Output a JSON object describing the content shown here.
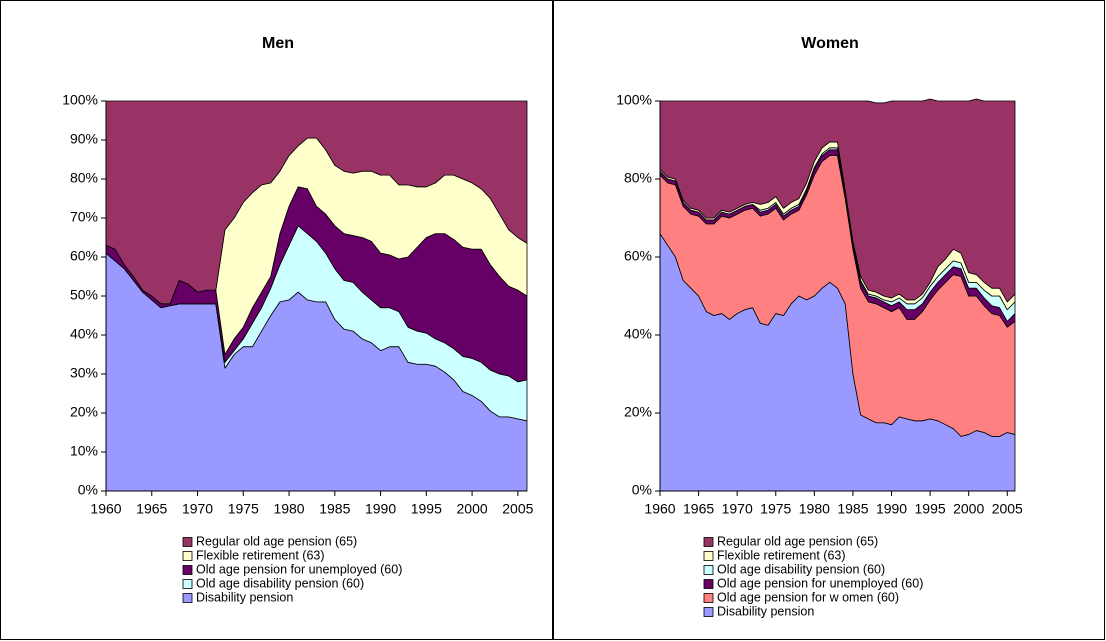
{
  "chart_data": [
    {
      "type": "stacked_area",
      "title": "Men",
      "x": [
        1960,
        1961,
        1962,
        1963,
        1964,
        1965,
        1966,
        1967,
        1968,
        1969,
        1970,
        1971,
        1972,
        1973,
        1974,
        1975,
        1976,
        1977,
        1978,
        1979,
        1980,
        1981,
        1982,
        1983,
        1984,
        1985,
        1986,
        1987,
        1988,
        1989,
        1990,
        1991,
        1992,
        1993,
        1994,
        1995,
        1996,
        1997,
        1998,
        1999,
        2000,
        2001,
        2002,
        2003,
        2004,
        2005,
        2006
      ],
      "xlim": [
        1960,
        2006
      ],
      "xticks": [
        1960,
        1965,
        1970,
        1975,
        1980,
        1985,
        1990,
        1995,
        2000,
        2005
      ],
      "ylim": [
        0,
        100
      ],
      "yticks": [
        {
          "value": 0,
          "label": "0%"
        },
        {
          "value": 10,
          "label": "10%"
        },
        {
          "value": 20,
          "label": "20%"
        },
        {
          "value": 30,
          "label": "30%"
        },
        {
          "value": 40,
          "label": "40%"
        },
        {
          "value": 50,
          "label": "50%"
        },
        {
          "value": 60,
          "label": "60%"
        },
        {
          "value": 70,
          "label": "70%"
        },
        {
          "value": 80,
          "label": "80%"
        },
        {
          "value": 90,
          "label": "90%"
        },
        {
          "value": 100,
          "label": "100%"
        }
      ],
      "series": [
        {
          "name": "Disability pension",
          "color": "#9999ff",
          "values": [
            61,
            59,
            57,
            54,
            51,
            49,
            47,
            47.5,
            48,
            48,
            48,
            48,
            48,
            31.5,
            35,
            37,
            37,
            41,
            45,
            48.5,
            49,
            51,
            49,
            48.5,
            48.5,
            44,
            41.5,
            41,
            39,
            38,
            36,
            37,
            37,
            33,
            32.5,
            32.5,
            32,
            30.5,
            28.5,
            25.5,
            24.5,
            23,
            20.5,
            19,
            19,
            18.5,
            18
          ]
        },
        {
          "name": "Old age disability pension (60)",
          "color": "#ccffff",
          "values": [
            0,
            0,
            0,
            0,
            0,
            0,
            0,
            0,
            0,
            0,
            0,
            0,
            0,
            1.5,
            1,
            2,
            6,
            6,
            7,
            9.5,
            14,
            17,
            17,
            15.5,
            12.5,
            13,
            12.5,
            12.5,
            12,
            11,
            11,
            10,
            9,
            9,
            8.5,
            8,
            7,
            7.5,
            8,
            9,
            9.5,
            10,
            10.5,
            11,
            10.5,
            9.5,
            10.5
          ]
        },
        {
          "name": "Old age pension for unemployed (60)",
          "color": "#660066",
          "values": [
            2,
            3,
            1,
            1,
            0.5,
            1,
            1,
            0.5,
            6,
            5,
            3,
            3.5,
            3.5,
            2,
            3,
            3,
            4,
            4,
            3,
            8,
            10,
            10,
            11.5,
            9,
            10,
            11,
            12,
            12,
            14,
            15,
            14,
            13.5,
            13.5,
            18,
            21.5,
            24.5,
            27,
            28,
            28,
            28,
            28,
            29,
            27,
            25,
            23,
            23.5,
            21.5
          ]
        },
        {
          "name": "Flexible retirement (63)",
          "color": "#ffffcc",
          "values": [
            0,
            0,
            0,
            0,
            0,
            0,
            0,
            0,
            0,
            0,
            0,
            0,
            0,
            32,
            31,
            32,
            29.5,
            27.5,
            24,
            16,
            13,
            10.5,
            13,
            17.5,
            16.5,
            15.5,
            16,
            16,
            17,
            18,
            20,
            20.5,
            19,
            18.5,
            15.5,
            13,
            13,
            15,
            16.5,
            17.5,
            17,
            15.5,
            17,
            16,
            14.5,
            13.5,
            13.5
          ]
        },
        {
          "name": "Regular old age pension (65)",
          "color": "#993366",
          "values": [
            37,
            38,
            42,
            45,
            48.5,
            50,
            52,
            52,
            46,
            47,
            49,
            48.5,
            48.5,
            33,
            30,
            26,
            23.5,
            21.5,
            21,
            18,
            14,
            11.5,
            9.5,
            9.5,
            12.5,
            16.5,
            18,
            18.5,
            18,
            18,
            19,
            19,
            21.5,
            21.5,
            22,
            22,
            21,
            19,
            19,
            20,
            21,
            22.5,
            25,
            29,
            33,
            35,
            36.5
          ]
        }
      ]
    },
    {
      "type": "stacked_area",
      "title": "Women",
      "x": [
        1960,
        1961,
        1962,
        1963,
        1964,
        1965,
        1966,
        1967,
        1968,
        1969,
        1970,
        1971,
        1972,
        1973,
        1974,
        1975,
        1976,
        1977,
        1978,
        1979,
        1980,
        1981,
        1982,
        1983,
        1984,
        1985,
        1986,
        1987,
        1988,
        1989,
        1990,
        1991,
        1992,
        1993,
        1994,
        1995,
        1996,
        1997,
        1998,
        1999,
        2000,
        2001,
        2002,
        2003,
        2004,
        2005,
        2006
      ],
      "xlim": [
        1960,
        2006
      ],
      "xticks": [
        1960,
        1965,
        1970,
        1975,
        1980,
        1985,
        1990,
        1995,
        2000,
        2005
      ],
      "ylim": [
        0,
        100
      ],
      "yticks": [
        {
          "value": 0,
          "label": "0%"
        },
        {
          "value": 20,
          "label": "20%"
        },
        {
          "value": 40,
          "label": "40%"
        },
        {
          "value": 60,
          "label": "60%"
        },
        {
          "value": 80,
          "label": "80%"
        },
        {
          "value": 100,
          "label": "100%"
        }
      ],
      "series": [
        {
          "name": "Disability pension",
          "color": "#9999ff",
          "values": [
            66,
            63,
            60,
            54,
            52,
            50,
            46,
            45,
            45.5,
            44,
            45.5,
            46.5,
            47,
            43,
            42.5,
            45.5,
            45,
            48,
            50,
            49,
            50,
            52,
            53.5,
            52,
            48,
            30,
            19.5,
            18.5,
            17.5,
            17.5,
            17,
            19,
            18.5,
            18,
            18,
            18.5,
            18,
            17,
            16,
            14,
            14.5,
            15.5,
            15,
            14,
            14,
            15,
            14.5
          ]
        },
        {
          "name": "Old age pension for w omen (60)",
          "color": "#ff8080",
          "values": [
            15,
            16,
            18.5,
            19,
            19,
            20.5,
            22.5,
            23.5,
            25,
            26,
            25.5,
            25.5,
            25.5,
            27.5,
            28.5,
            27,
            24.5,
            23,
            22,
            27,
            31,
            32.5,
            32.5,
            34,
            27,
            32,
            32.5,
            30,
            30.5,
            29.5,
            29,
            28,
            25.5,
            26,
            28,
            30.5,
            33.5,
            36.5,
            39.5,
            41,
            35.5,
            34.5,
            32.5,
            31.5,
            31,
            27,
            29
          ]
        },
        {
          "name": "Old age pension for unemployed (60)",
          "color": "#660066",
          "values": [
            1,
            1,
            1,
            1,
            1,
            1,
            1,
            1,
            1,
            1,
            1,
            1,
            1,
            1,
            1,
            1,
            1,
            1,
            1,
            1,
            1.5,
            1.5,
            1.5,
            1.5,
            1,
            1,
            1.5,
            1.5,
            1.5,
            1.5,
            1.5,
            1.5,
            2.5,
            2.5,
            2,
            2,
            2,
            2,
            2,
            2,
            2,
            2,
            2,
            2,
            2,
            1.5,
            2
          ]
        },
        {
          "name": "Old age disability pension (60)",
          "color": "#ccffff",
          "values": [
            0,
            0,
            0,
            0,
            0,
            0,
            0,
            0,
            0,
            0,
            0,
            0,
            0,
            0.5,
            0.5,
            0.5,
            0.5,
            0.5,
            0.5,
            0.5,
            0.5,
            0.5,
            0.5,
            0.5,
            0.5,
            0.5,
            0.5,
            0.5,
            0.5,
            0.5,
            1,
            1,
            1.5,
            1.5,
            1.5,
            1.5,
            1.5,
            1.5,
            1.5,
            1.5,
            1.5,
            1.5,
            2,
            2.5,
            3,
            3,
            3
          ]
        },
        {
          "name": "Flexible retirement (63)",
          "color": "#ffffcc",
          "values": [
            0.5,
            0.5,
            0.5,
            0.5,
            0.5,
            0.5,
            0.5,
            0.5,
            0.5,
            0.5,
            0.5,
            0.5,
            0.5,
            1.5,
            1.5,
            1.5,
            1.5,
            1.5,
            1.5,
            1.5,
            1.5,
            1.5,
            1.5,
            1.5,
            0.5,
            0.5,
            1,
            1,
            1,
            1,
            1,
            1,
            1,
            1,
            1,
            1,
            2.5,
            2.5,
            3,
            2.5,
            2.5,
            2,
            2,
            2,
            2,
            2,
            2
          ]
        },
        {
          "name": "Regular old age pension (65)",
          "color": "#993366",
          "values": [
            17.5,
            19.5,
            20,
            25.5,
            27.5,
            28,
            30,
            30,
            28,
            28.5,
            27.5,
            26.5,
            26,
            26.5,
            26,
            24.5,
            27.5,
            26,
            25,
            21,
            15.5,
            12,
            10.5,
            10.5,
            23,
            36,
            45,
            48.5,
            48.5,
            49.5,
            50.5,
            49.5,
            51,
            51,
            49.5,
            47,
            42.5,
            40.5,
            38,
            39,
            44,
            45,
            46.5,
            48,
            48,
            51.5,
            49.5
          ]
        }
      ]
    }
  ]
}
